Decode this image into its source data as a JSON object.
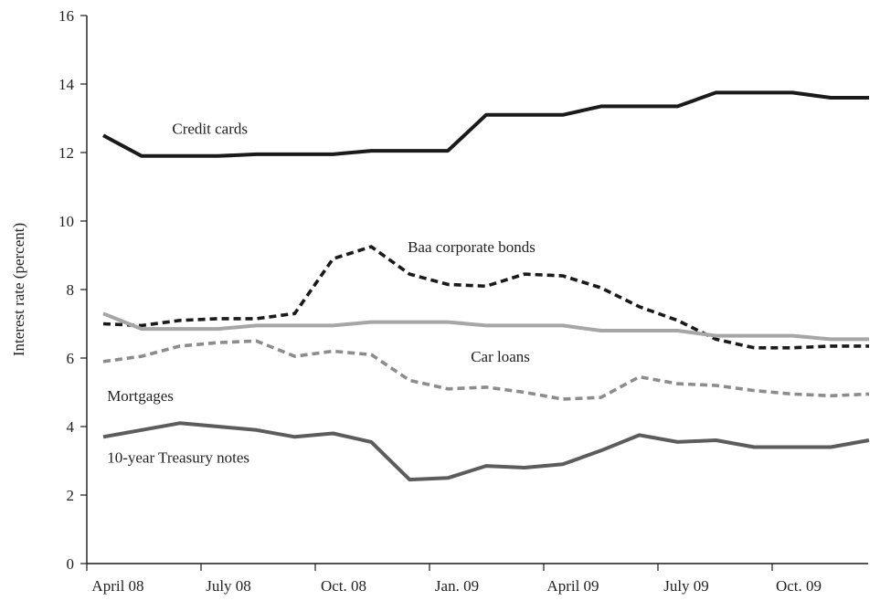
{
  "chart_data": {
    "type": "line",
    "title": "",
    "xlabel": "",
    "ylabel": "Interest rate (percent)",
    "ylim": [
      0,
      16
    ],
    "yticks": [
      0,
      2,
      4,
      6,
      8,
      10,
      12,
      14,
      16
    ],
    "x_tick_labels": [
      "April 08",
      "July 08",
      "Oct. 08",
      "Jan. 09",
      "April 09",
      "July 09",
      "Oct. 09"
    ],
    "x_months": [
      "Apr 08",
      "May 08",
      "Jun 08",
      "Jul 08",
      "Aug 08",
      "Sep 08",
      "Oct 08",
      "Nov 08",
      "Dec 08",
      "Jan 09",
      "Feb 09",
      "Mar 09",
      "Apr 09",
      "May 09",
      "Jun 09",
      "Jul 09",
      "Aug 09",
      "Sep 09",
      "Oct 09",
      "Nov 09",
      "Dec 09"
    ],
    "grid": false,
    "legend": "none (series labeled inline)",
    "series": [
      {
        "name": "Credit cards",
        "color": "#1a1a1a",
        "style": "solid",
        "values": [
          12.5,
          11.9,
          11.9,
          11.9,
          11.95,
          11.95,
          11.95,
          12.05,
          12.05,
          12.05,
          13.1,
          13.1,
          13.1,
          13.35,
          13.35,
          13.35,
          13.75,
          13.75,
          13.75,
          13.6,
          13.6
        ]
      },
      {
        "name": "Baa corporate bonds",
        "color": "#1a1a1a",
        "style": "dashed",
        "values": [
          7.0,
          6.95,
          7.1,
          7.15,
          7.15,
          7.3,
          8.9,
          9.25,
          8.45,
          8.15,
          8.1,
          8.45,
          8.4,
          8.05,
          7.5,
          7.1,
          6.55,
          6.3,
          6.3,
          6.35,
          6.35
        ]
      },
      {
        "name": "Car loans",
        "color": "#a6a6a6",
        "style": "solid",
        "values": [
          7.3,
          6.85,
          6.85,
          6.85,
          6.95,
          6.95,
          6.95,
          7.05,
          7.05,
          7.05,
          6.95,
          6.95,
          6.95,
          6.8,
          6.8,
          6.8,
          6.65,
          6.65,
          6.65,
          6.55,
          6.55
        ]
      },
      {
        "name": "Mortgages",
        "color": "#8c8c8c",
        "style": "dashed",
        "values": [
          5.9,
          6.05,
          6.35,
          6.45,
          6.5,
          6.05,
          6.2,
          6.1,
          5.35,
          5.1,
          5.15,
          5.0,
          4.8,
          4.85,
          5.45,
          5.25,
          5.2,
          5.05,
          4.95,
          4.9,
          4.95
        ]
      },
      {
        "name": "10-year Treasury notes",
        "color": "#5c5c5c",
        "style": "solid",
        "values": [
          3.7,
          3.9,
          4.1,
          4.0,
          3.9,
          3.7,
          3.8,
          3.55,
          2.45,
          2.5,
          2.85,
          2.8,
          2.9,
          3.3,
          3.75,
          3.55,
          3.6,
          3.4,
          3.4,
          3.4,
          3.6
        ]
      }
    ],
    "annotations": [
      {
        "text": "Credit cards",
        "month": 1.8,
        "value": 12.55
      },
      {
        "text": "Baa corporate bonds",
        "month": 7.95,
        "value": 9.1
      },
      {
        "text": "Car loans",
        "month": 9.6,
        "value": 5.9
      },
      {
        "text": "Mortgages",
        "month": 0.1,
        "value": 4.75
      },
      {
        "text": "10-year Treasury notes",
        "month": 0.1,
        "value": 2.95
      }
    ]
  }
}
